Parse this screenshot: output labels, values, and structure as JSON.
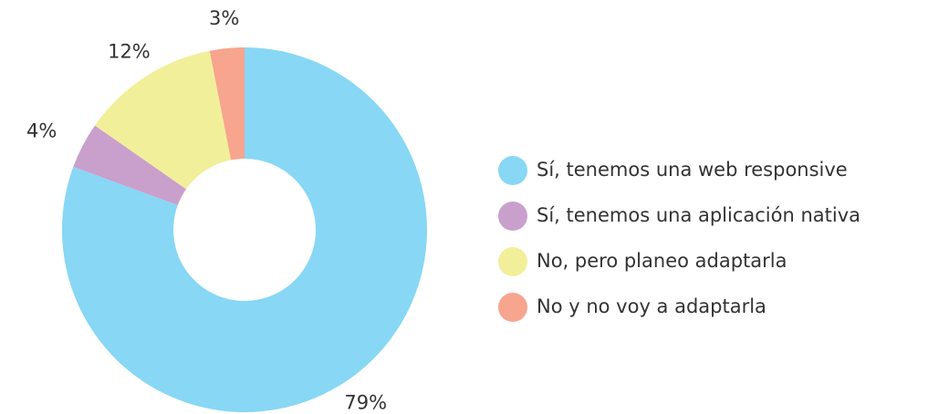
{
  "chart_data": {
    "type": "donut",
    "categories": [
      "Sí, tenemos una web responsive",
      "Sí, tenemos una aplicación nativa",
      "No, pero planeo adaptarla",
      "No y no voy a adaptarla"
    ],
    "values": [
      79,
      4,
      12,
      3
    ],
    "value_labels": [
      "79%",
      "4%",
      "12%",
      "3%"
    ],
    "colors": [
      "#87d7f5",
      "#c9a0cc",
      "#f2ef9a",
      "#f7a58e"
    ]
  }
}
